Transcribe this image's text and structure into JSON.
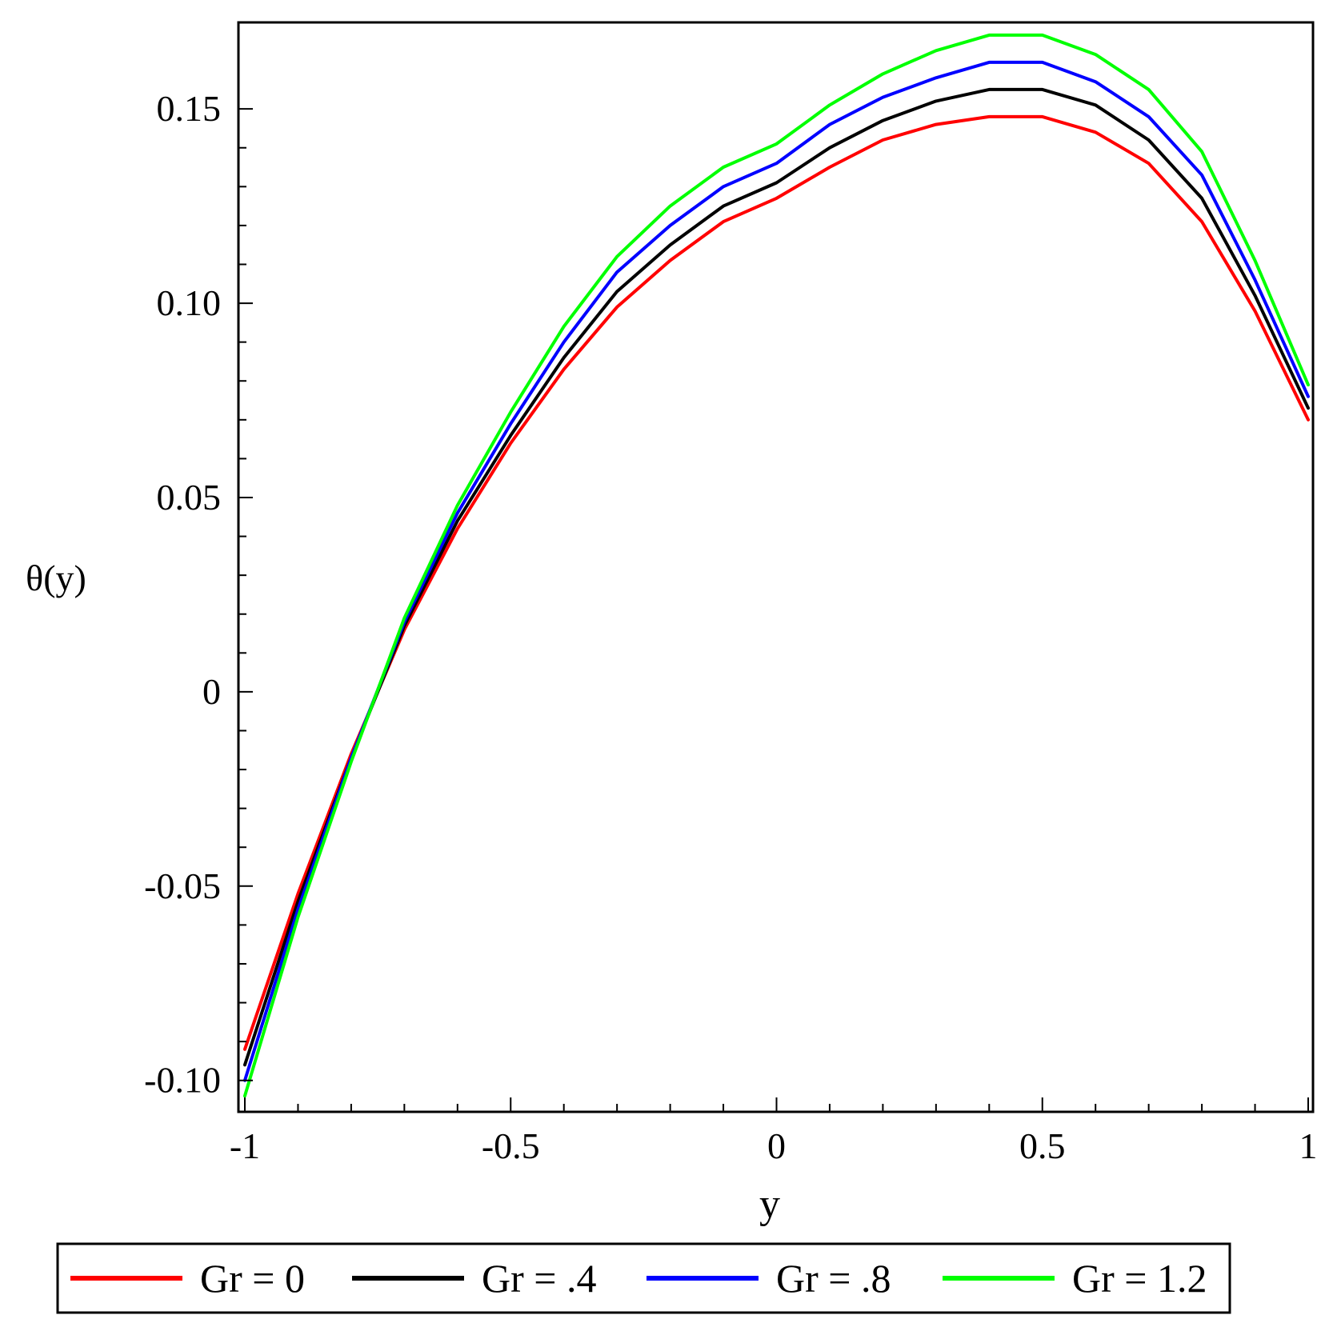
{
  "chart_data": {
    "type": "line",
    "xlabel": "y",
    "ylabel": "θ(y)",
    "xlim": [
      -1,
      1
    ],
    "ylim": [
      -0.105,
      0.17
    ],
    "x_ticks": [
      {
        "value": -1,
        "label": "-1"
      },
      {
        "value": -0.5,
        "label": "-0.5"
      },
      {
        "value": 0,
        "label": "0"
      },
      {
        "value": 0.5,
        "label": "0.5"
      },
      {
        "value": 1,
        "label": "1"
      }
    ],
    "y_ticks": [
      {
        "value": -0.1,
        "label": "-0.10"
      },
      {
        "value": -0.05,
        "label": "-0.05"
      },
      {
        "value": 0,
        "label": "0"
      },
      {
        "value": 0.05,
        "label": "0.05"
      },
      {
        "value": 0.1,
        "label": "0.10"
      },
      {
        "value": 0.15,
        "label": "0.15"
      }
    ],
    "grid": false,
    "legend_position": "bottom",
    "x": [
      -1.0,
      -0.9,
      -0.8,
      -0.7,
      -0.6,
      -0.5,
      -0.4,
      -0.3,
      -0.2,
      -0.1,
      0.0,
      0.1,
      0.2,
      0.3,
      0.4,
      0.5,
      0.6,
      0.7,
      0.8,
      0.9,
      1.0
    ],
    "series": [
      {
        "name": "Gr = 0",
        "color": "#ff0000",
        "values": [
          -0.092,
          -0.052,
          -0.016,
          0.016,
          0.042,
          0.064,
          0.083,
          0.099,
          0.111,
          0.121,
          0.127,
          0.135,
          0.142,
          0.146,
          0.148,
          0.148,
          0.144,
          0.136,
          0.121,
          0.098,
          0.07
        ]
      },
      {
        "name": "Gr = .4",
        "color": "#000000",
        "values": [
          -0.096,
          -0.054,
          -0.017,
          0.017,
          0.044,
          0.066,
          0.086,
          0.103,
          0.115,
          0.125,
          0.131,
          0.14,
          0.147,
          0.152,
          0.155,
          0.155,
          0.151,
          0.142,
          0.127,
          0.102,
          0.073
        ]
      },
      {
        "name": "Gr = .8",
        "color": "#0000ff",
        "values": [
          -0.1,
          -0.056,
          -0.017,
          0.018,
          0.046,
          0.069,
          0.09,
          0.108,
          0.12,
          0.13,
          0.136,
          0.146,
          0.153,
          0.158,
          0.162,
          0.162,
          0.157,
          0.148,
          0.133,
          0.106,
          0.076
        ]
      },
      {
        "name": "Gr = 1.2",
        "color": "#00ff00",
        "values": [
          -0.104,
          -0.058,
          -0.018,
          0.019,
          0.048,
          0.072,
          0.094,
          0.112,
          0.125,
          0.135,
          0.141,
          0.151,
          0.159,
          0.165,
          0.169,
          0.169,
          0.164,
          0.155,
          0.139,
          0.111,
          0.079
        ]
      }
    ]
  }
}
